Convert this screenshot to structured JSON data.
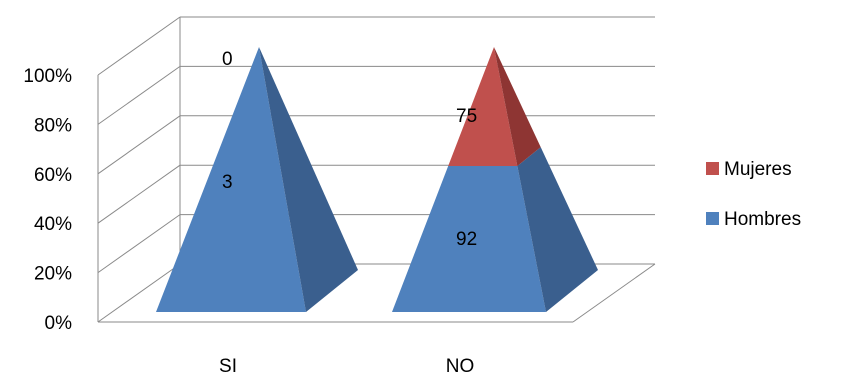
{
  "chart_data": {
    "type": "bar",
    "subtype": "3d-stacked-pyramid-100-percent",
    "categories": [
      "SI",
      "NO"
    ],
    "series": [
      {
        "name": "Hombres",
        "values": [
          3,
          92
        ],
        "color": "#4F81BD",
        "side_color": "#3A5F8E"
      },
      {
        "name": "Mujeres",
        "values": [
          0,
          75
        ],
        "color": "#C0504D",
        "side_color": "#8E3533"
      }
    ],
    "y_ticks": [
      "0%",
      "20%",
      "40%",
      "60%",
      "80%",
      "100%"
    ],
    "ylim": [
      0,
      100
    ],
    "grid": true,
    "legend": {
      "position": "right",
      "items": [
        "Mujeres",
        "Hombres"
      ]
    }
  }
}
